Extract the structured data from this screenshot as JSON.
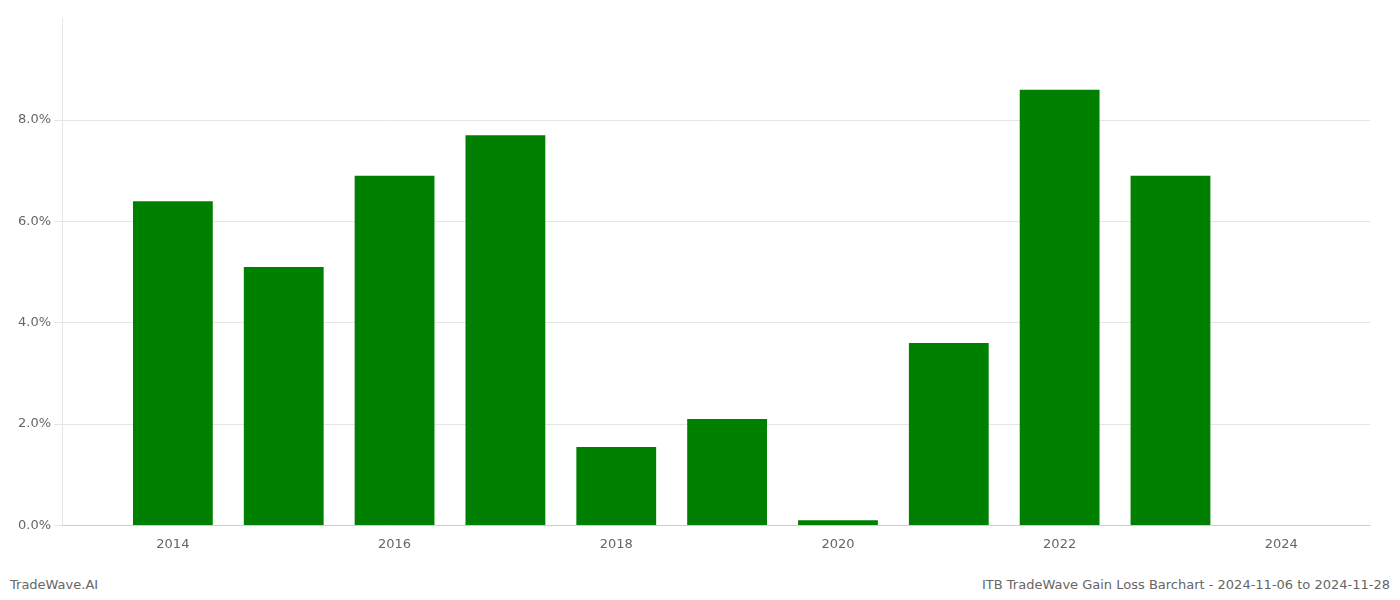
{
  "chart_data": {
    "type": "bar",
    "x": [
      2014,
      2015,
      2016,
      2017,
      2018,
      2019,
      2020,
      2021,
      2022,
      2023
    ],
    "values": [
      0.064,
      0.051,
      0.069,
      0.077,
      0.0155,
      0.021,
      0.001,
      0.036,
      0.086,
      0.069
    ],
    "color": "#008000",
    "xlim": [
      2013,
      2024.8
    ],
    "xticks": [
      2014,
      2016,
      2018,
      2020,
      2022,
      2024
    ],
    "ylim": [
      0,
      0.1
    ],
    "yticks": [
      {
        "value": 0.0,
        "label": "0.0%"
      },
      {
        "value": 0.02,
        "label": "2.0%"
      },
      {
        "value": 0.04,
        "label": "4.0%"
      },
      {
        "value": 0.06,
        "label": "6.0%"
      },
      {
        "value": 0.08,
        "label": "8.0%"
      }
    ],
    "grid": true,
    "annotations": [
      "TradeWave.AI",
      "ITB TradeWave Gain Loss Barchart - 2024-11-06 to 2024-11-28"
    ]
  }
}
